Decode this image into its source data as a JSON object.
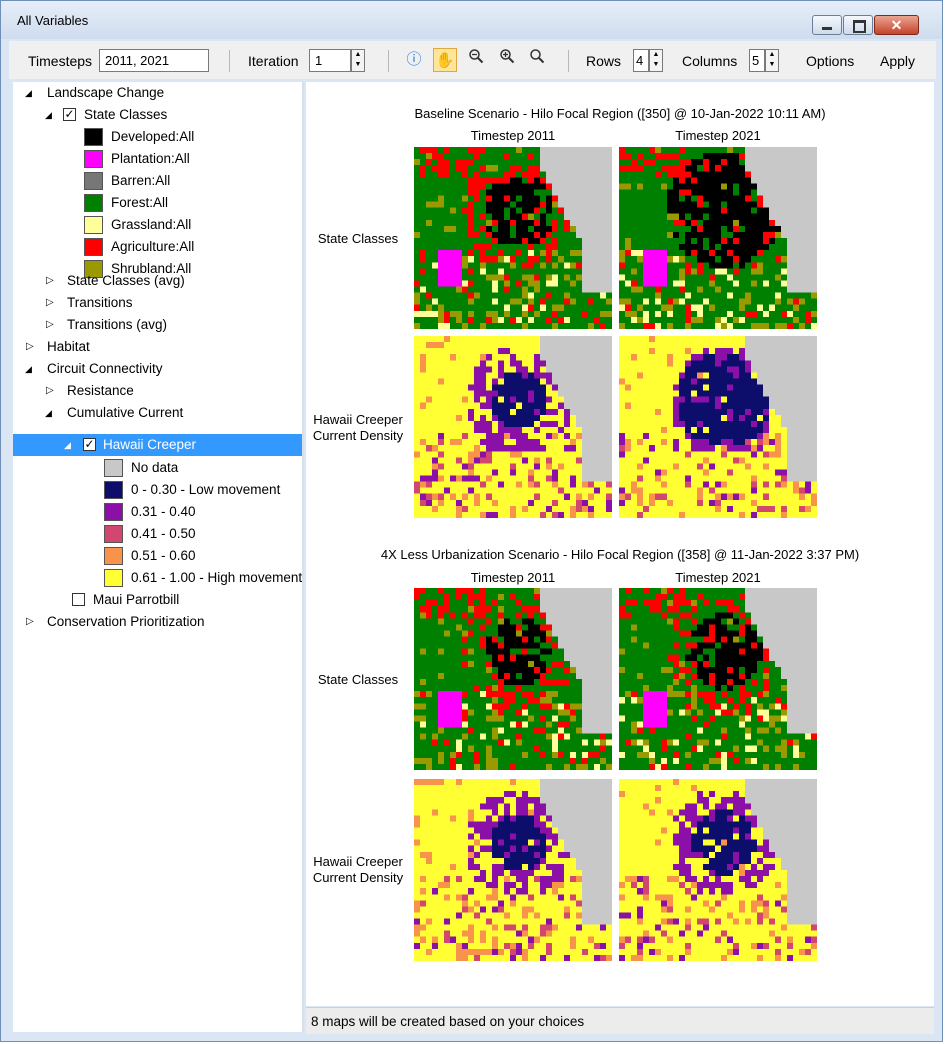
{
  "window": {
    "title": "All Variables"
  },
  "toolbar": {
    "timesteps_label": "Timesteps",
    "timesteps_value": "2011, 2021",
    "iteration_label": "Iteration",
    "iteration_value": "1",
    "rows_label": "Rows",
    "rows_value": "4",
    "columns_label": "Columns",
    "columns_value": "5",
    "options_label": "Options",
    "apply_label": "Apply"
  },
  "tree": {
    "landscape_change": "Landscape Change",
    "state_classes": "State Classes",
    "state_class_items": [
      {
        "label": "Developed:All",
        "color": "#000000"
      },
      {
        "label": "Plantation:All",
        "color": "#ff00ff"
      },
      {
        "label": "Barren:All",
        "color": "#777777"
      },
      {
        "label": "Forest:All",
        "color": "#008000"
      },
      {
        "label": "Grassland:All",
        "color": "#ffff99"
      },
      {
        "label": "Agriculture:All",
        "color": "#ff0000"
      },
      {
        "label": "Shrubland:All",
        "color": "#999900"
      }
    ],
    "state_classes_avg": "State Classes (avg)",
    "transitions": "Transitions",
    "transitions_avg": "Transitions (avg)",
    "habitat": "Habitat",
    "circuit_connectivity": "Circuit Connectivity",
    "resistance": "Resistance",
    "cumulative_current": "Cumulative Current",
    "hawaii_creeper": "Hawaii Creeper",
    "current_items": [
      {
        "label": "No data",
        "color": "#c8c8c8"
      },
      {
        "label": "0 - 0.30 - Low movement",
        "color": "#0d0d6b"
      },
      {
        "label": "0.31 - 0.40",
        "color": "#8b10a8"
      },
      {
        "label": "0.41 - 0.50",
        "color": "#d1476f"
      },
      {
        "label": "0.51 - 0.60",
        "color": "#f7934a"
      },
      {
        "label": "0.61 - 1.00 - High movement",
        "color": "#ffff33"
      }
    ],
    "maui_parrotbill": "Maui Parrotbill",
    "conservation_prioritization": "Conservation Prioritization"
  },
  "scenarios": [
    {
      "title": "Baseline Scenario - Hilo Focal Region ([350] @ 10-Jan-2022 10:11 AM)",
      "timestep_labels": [
        "Timestep 2011",
        "Timestep 2021"
      ],
      "row_labels": [
        "State Classes",
        "Hawaii Creeper\nCurrent Density"
      ]
    },
    {
      "title": "4X Less Urbanization Scenario - Hilo Focal Region ([358] @ 11-Jan-2022 3:37 PM)",
      "timestep_labels": [
        "Timestep 2011",
        "Timestep 2021"
      ],
      "row_labels": [
        "State Classes",
        "Hawaii Creeper\nCurrent Density"
      ]
    }
  ],
  "status": "8 maps will be created based on your choices"
}
